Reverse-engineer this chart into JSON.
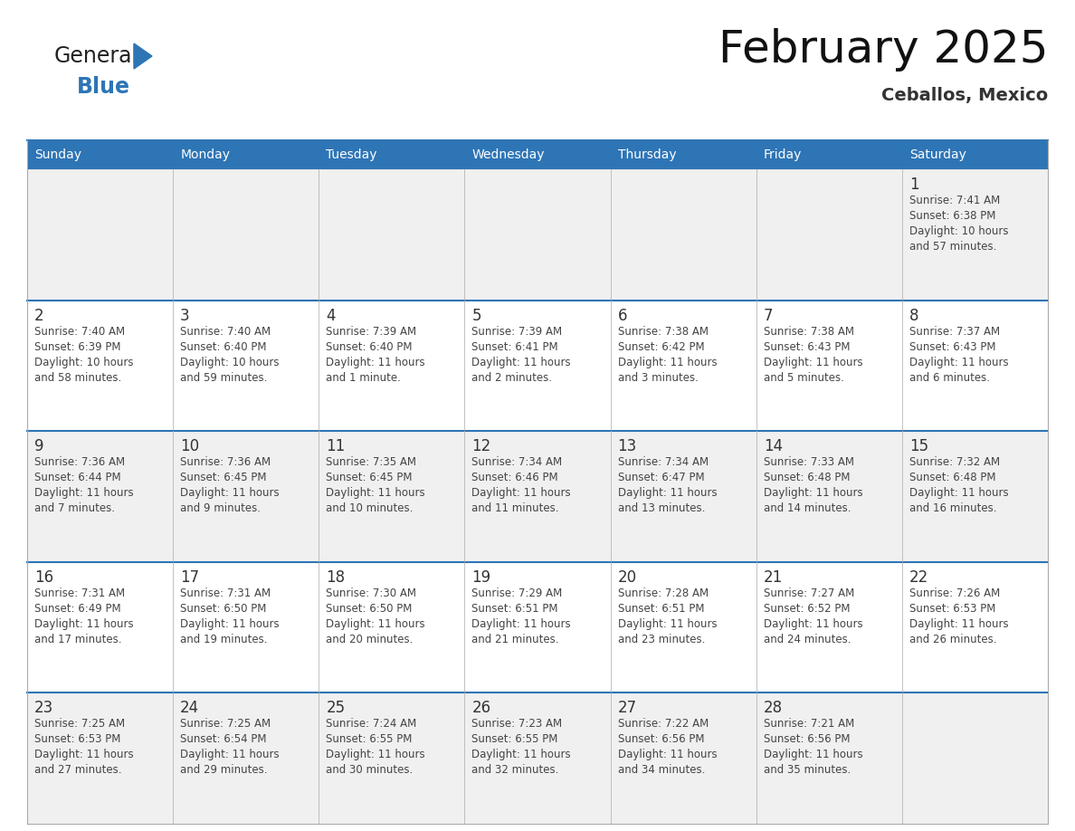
{
  "title": "February 2025",
  "subtitle": "Ceballos, Mexico",
  "header_color": "#2E75B6",
  "header_text_color": "#FFFFFF",
  "background_color": "#FFFFFF",
  "cell_bg_light": "#F0F0F0",
  "cell_bg_white": "#FFFFFF",
  "separator_color": "#2E75B6",
  "border_color": "#AAAAAA",
  "day_headers": [
    "Sunday",
    "Monday",
    "Tuesday",
    "Wednesday",
    "Thursday",
    "Friday",
    "Saturday"
  ],
  "text_color": "#444444",
  "date_color": "#333333",
  "days": [
    {
      "day": 1,
      "col": 6,
      "row": 0,
      "sunrise": "7:41 AM",
      "sunset": "6:38 PM",
      "daylight": "10 hours and 57 minutes"
    },
    {
      "day": 2,
      "col": 0,
      "row": 1,
      "sunrise": "7:40 AM",
      "sunset": "6:39 PM",
      "daylight": "10 hours and 58 minutes"
    },
    {
      "day": 3,
      "col": 1,
      "row": 1,
      "sunrise": "7:40 AM",
      "sunset": "6:40 PM",
      "daylight": "10 hours and 59 minutes"
    },
    {
      "day": 4,
      "col": 2,
      "row": 1,
      "sunrise": "7:39 AM",
      "sunset": "6:40 PM",
      "daylight": "11 hours and 1 minute"
    },
    {
      "day": 5,
      "col": 3,
      "row": 1,
      "sunrise": "7:39 AM",
      "sunset": "6:41 PM",
      "daylight": "11 hours and 2 minutes"
    },
    {
      "day": 6,
      "col": 4,
      "row": 1,
      "sunrise": "7:38 AM",
      "sunset": "6:42 PM",
      "daylight": "11 hours and 3 minutes"
    },
    {
      "day": 7,
      "col": 5,
      "row": 1,
      "sunrise": "7:38 AM",
      "sunset": "6:43 PM",
      "daylight": "11 hours and 5 minutes"
    },
    {
      "day": 8,
      "col": 6,
      "row": 1,
      "sunrise": "7:37 AM",
      "sunset": "6:43 PM",
      "daylight": "11 hours and 6 minutes"
    },
    {
      "day": 9,
      "col": 0,
      "row": 2,
      "sunrise": "7:36 AM",
      "sunset": "6:44 PM",
      "daylight": "11 hours and 7 minutes"
    },
    {
      "day": 10,
      "col": 1,
      "row": 2,
      "sunrise": "7:36 AM",
      "sunset": "6:45 PM",
      "daylight": "11 hours and 9 minutes"
    },
    {
      "day": 11,
      "col": 2,
      "row": 2,
      "sunrise": "7:35 AM",
      "sunset": "6:45 PM",
      "daylight": "11 hours and 10 minutes"
    },
    {
      "day": 12,
      "col": 3,
      "row": 2,
      "sunrise": "7:34 AM",
      "sunset": "6:46 PM",
      "daylight": "11 hours and 11 minutes"
    },
    {
      "day": 13,
      "col": 4,
      "row": 2,
      "sunrise": "7:34 AM",
      "sunset": "6:47 PM",
      "daylight": "11 hours and 13 minutes"
    },
    {
      "day": 14,
      "col": 5,
      "row": 2,
      "sunrise": "7:33 AM",
      "sunset": "6:48 PM",
      "daylight": "11 hours and 14 minutes"
    },
    {
      "day": 15,
      "col": 6,
      "row": 2,
      "sunrise": "7:32 AM",
      "sunset": "6:48 PM",
      "daylight": "11 hours and 16 minutes"
    },
    {
      "day": 16,
      "col": 0,
      "row": 3,
      "sunrise": "7:31 AM",
      "sunset": "6:49 PM",
      "daylight": "11 hours and 17 minutes"
    },
    {
      "day": 17,
      "col": 1,
      "row": 3,
      "sunrise": "7:31 AM",
      "sunset": "6:50 PM",
      "daylight": "11 hours and 19 minutes"
    },
    {
      "day": 18,
      "col": 2,
      "row": 3,
      "sunrise": "7:30 AM",
      "sunset": "6:50 PM",
      "daylight": "11 hours and 20 minutes"
    },
    {
      "day": 19,
      "col": 3,
      "row": 3,
      "sunrise": "7:29 AM",
      "sunset": "6:51 PM",
      "daylight": "11 hours and 21 minutes"
    },
    {
      "day": 20,
      "col": 4,
      "row": 3,
      "sunrise": "7:28 AM",
      "sunset": "6:51 PM",
      "daylight": "11 hours and 23 minutes"
    },
    {
      "day": 21,
      "col": 5,
      "row": 3,
      "sunrise": "7:27 AM",
      "sunset": "6:52 PM",
      "daylight": "11 hours and 24 minutes"
    },
    {
      "day": 22,
      "col": 6,
      "row": 3,
      "sunrise": "7:26 AM",
      "sunset": "6:53 PM",
      "daylight": "11 hours and 26 minutes"
    },
    {
      "day": 23,
      "col": 0,
      "row": 4,
      "sunrise": "7:25 AM",
      "sunset": "6:53 PM",
      "daylight": "11 hours and 27 minutes"
    },
    {
      "day": 24,
      "col": 1,
      "row": 4,
      "sunrise": "7:25 AM",
      "sunset": "6:54 PM",
      "daylight": "11 hours and 29 minutes"
    },
    {
      "day": 25,
      "col": 2,
      "row": 4,
      "sunrise": "7:24 AM",
      "sunset": "6:55 PM",
      "daylight": "11 hours and 30 minutes"
    },
    {
      "day": 26,
      "col": 3,
      "row": 4,
      "sunrise": "7:23 AM",
      "sunset": "6:55 PM",
      "daylight": "11 hours and 32 minutes"
    },
    {
      "day": 27,
      "col": 4,
      "row": 4,
      "sunrise": "7:22 AM",
      "sunset": "6:56 PM",
      "daylight": "11 hours and 34 minutes"
    },
    {
      "day": 28,
      "col": 5,
      "row": 4,
      "sunrise": "7:21 AM",
      "sunset": "6:56 PM",
      "daylight": "11 hours and 35 minutes"
    }
  ]
}
